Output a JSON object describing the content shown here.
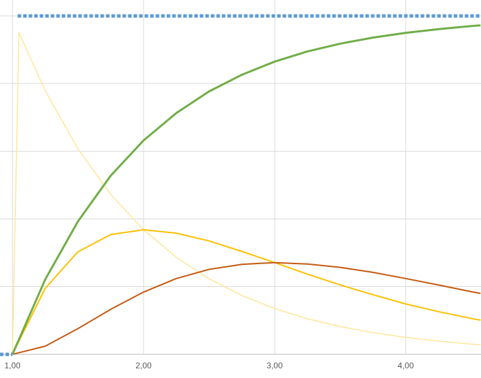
{
  "chart_data": {
    "type": "line",
    "xlim": [
      0.905,
      4.574
    ],
    "ylim": [
      -0.07,
      1.047
    ],
    "xticks": [
      {
        "value": 1,
        "label": "1,00"
      },
      {
        "value": 2,
        "label": "2,00"
      },
      {
        "value": 3,
        "label": "3,00"
      },
      {
        "value": 4,
        "label": "4,00"
      }
    ],
    "ygrid": [
      0,
      0.2,
      0.4,
      0.6,
      0.8,
      1
    ],
    "grid": true,
    "series": [
      {
        "color": "#ffe699",
        "width": 1.5,
        "dash": false,
        "x": [
          1,
          1.05,
          1.25,
          1.5,
          1.75,
          2,
          2.25,
          2.5,
          2.75,
          3,
          3.25,
          3.5,
          3.75,
          4,
          4.25,
          4.5,
          4.57
        ],
        "values": [
          0,
          0.951,
          0.779,
          0.607,
          0.472,
          0.368,
          0.287,
          0.223,
          0.174,
          0.135,
          0.105,
          0.082,
          0.064,
          0.05,
          0.039,
          0.03,
          0.028
        ]
      },
      {
        "color": "#ffc000",
        "width": 2,
        "dash": false,
        "x": [
          1,
          1.25,
          1.5,
          1.75,
          2,
          2.25,
          2.5,
          2.75,
          3,
          3.25,
          3.5,
          3.75,
          4,
          4.25,
          4.5,
          4.57
        ],
        "values": [
          0,
          0.195,
          0.303,
          0.354,
          0.368,
          0.358,
          0.335,
          0.304,
          0.271,
          0.237,
          0.205,
          0.176,
          0.149,
          0.126,
          0.106,
          0.101
        ]
      },
      {
        "color": "#c55a11",
        "width": 2,
        "dash": false,
        "x": [
          1,
          1.25,
          1.5,
          1.75,
          2,
          2.25,
          2.5,
          2.75,
          3,
          3.25,
          3.5,
          3.75,
          4,
          4.25,
          4.5,
          4.57
        ],
        "values": [
          0,
          0.024,
          0.076,
          0.133,
          0.184,
          0.224,
          0.251,
          0.266,
          0.271,
          0.267,
          0.257,
          0.242,
          0.224,
          0.205,
          0.185,
          0.18
        ]
      },
      {
        "color": "#70ad47",
        "width": 3,
        "dash": false,
        "x": [
          1,
          1.25,
          1.5,
          1.75,
          2,
          2.25,
          2.5,
          2.75,
          3,
          3.25,
          3.5,
          3.75,
          4,
          4.25,
          4.5,
          4.57
        ],
        "values": [
          0,
          0.221,
          0.393,
          0.528,
          0.632,
          0.713,
          0.777,
          0.826,
          0.865,
          0.895,
          0.918,
          0.936,
          0.95,
          0.961,
          0.97,
          0.972
        ]
      },
      {
        "color": "#5b9bd5",
        "width": 5,
        "dash": true,
        "x": [
          0.905,
          1,
          1.02,
          1.04,
          4.574
        ],
        "values": [
          0,
          0,
          null,
          1,
          1
        ]
      }
    ]
  }
}
